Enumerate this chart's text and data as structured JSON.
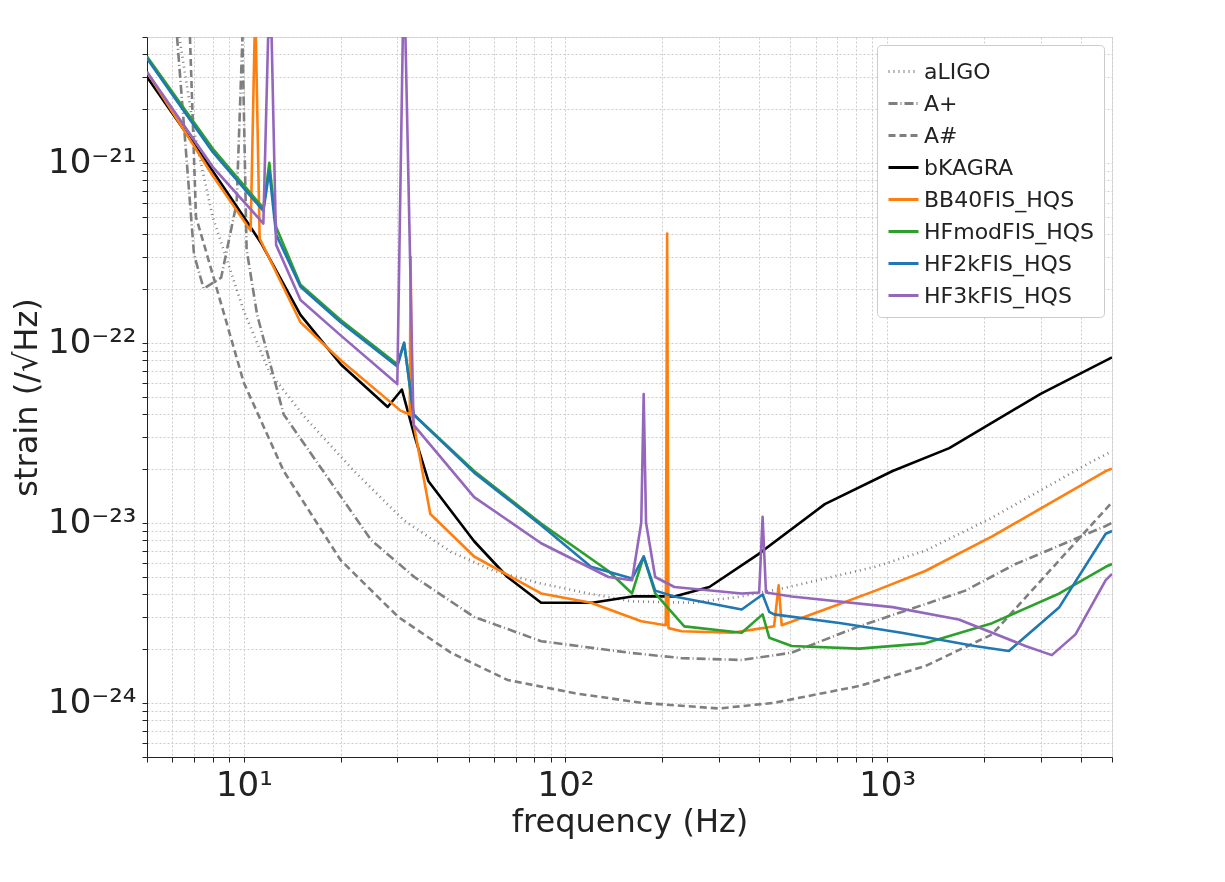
{
  "chart_data": {
    "type": "line",
    "xlabel": "frequency (Hz)",
    "ylabel": "strain (/√Hz)",
    "log": "xy",
    "grid": true,
    "legend": "top right",
    "xlim": [
      5,
      5000
    ],
    "ylim": [
      5e-25,
      5e-21
    ],
    "xticks": [
      {
        "value": 5,
        "label": null
      },
      {
        "value": 6,
        "label": null
      },
      {
        "value": 7,
        "label": null
      },
      {
        "value": 8,
        "label": null
      },
      {
        "value": 9,
        "label": null
      },
      {
        "value": 10,
        "label": "10¹"
      },
      {
        "value": 20,
        "label": null
      },
      {
        "value": 30,
        "label": null
      },
      {
        "value": 40,
        "label": null
      },
      {
        "value": 50,
        "label": null
      },
      {
        "value": 60,
        "label": null
      },
      {
        "value": 70,
        "label": null
      },
      {
        "value": 80,
        "label": null
      },
      {
        "value": 90,
        "label": null
      },
      {
        "value": 100,
        "label": "10²"
      },
      {
        "value": 200,
        "label": null
      },
      {
        "value": 300,
        "label": null
      },
      {
        "value": 400,
        "label": null
      },
      {
        "value": 500,
        "label": null
      },
      {
        "value": 600,
        "label": null
      },
      {
        "value": 700,
        "label": null
      },
      {
        "value": 800,
        "label": null
      },
      {
        "value": 900,
        "label": null
      },
      {
        "value": 1000,
        "label": "10³"
      },
      {
        "value": 2000,
        "label": null
      },
      {
        "value": 3000,
        "label": null
      },
      {
        "value": 4000,
        "label": null
      },
      {
        "value": 5000,
        "label": null
      }
    ],
    "yticks": [
      {
        "value": 5e-25,
        "label": null
      },
      {
        "value": 6e-25,
        "label": null
      },
      {
        "value": 7e-25,
        "label": null
      },
      {
        "value": 8e-25,
        "label": null
      },
      {
        "value": 9e-25,
        "label": null
      },
      {
        "value": 1e-24,
        "label": "10⁻²⁴"
      },
      {
        "value": 2e-24,
        "label": null
      },
      {
        "value": 3e-24,
        "label": null
      },
      {
        "value": 4e-24,
        "label": null
      },
      {
        "value": 5e-24,
        "label": null
      },
      {
        "value": 6e-24,
        "label": null
      },
      {
        "value": 7e-24,
        "label": null
      },
      {
        "value": 8e-24,
        "label": null
      },
      {
        "value": 9e-24,
        "label": null
      },
      {
        "value": 1e-23,
        "label": "10⁻²³"
      },
      {
        "value": 2e-23,
        "label": null
      },
      {
        "value": 3e-23,
        "label": null
      },
      {
        "value": 4e-23,
        "label": null
      },
      {
        "value": 5e-23,
        "label": null
      },
      {
        "value": 6e-23,
        "label": null
      },
      {
        "value": 7e-23,
        "label": null
      },
      {
        "value": 8e-23,
        "label": null
      },
      {
        "value": 9e-23,
        "label": null
      },
      {
        "value": 1e-22,
        "label": "10⁻²²"
      },
      {
        "value": 2e-22,
        "label": null
      },
      {
        "value": 3e-22,
        "label": null
      },
      {
        "value": 4e-22,
        "label": null
      },
      {
        "value": 5e-22,
        "label": null
      },
      {
        "value": 6e-22,
        "label": null
      },
      {
        "value": 7e-22,
        "label": null
      },
      {
        "value": 8e-22,
        "label": null
      },
      {
        "value": 9e-22,
        "label": null
      },
      {
        "value": 1e-21,
        "label": "10⁻²¹"
      },
      {
        "value": 2e-21,
        "label": null
      },
      {
        "value": 3e-21,
        "label": null
      },
      {
        "value": 4e-21,
        "label": null
      },
      {
        "value": 5e-21,
        "label": null
      }
    ],
    "series": [
      {
        "name": "aLIGO",
        "color": "#7f7f7f",
        "line_style": "dotted",
        "x": [
          6.3,
          7,
          8,
          10,
          12,
          15.4,
          22,
          31.5,
          44,
          60,
          84,
          118,
          161,
          250,
          353,
          495,
          918,
          1313,
          2080,
          4350,
          5000
        ],
        "values": [
          5e-21,
          1.5e-21,
          5e-22,
          1.5e-22,
          6.9e-23,
          3.9e-23,
          1.94e-23,
          1.03e-23,
          6.9e-24,
          5.4e-24,
          4.6e-24,
          4.05e-24,
          3.66e-24,
          3.6e-24,
          3.9e-24,
          4.4e-24,
          5.7e-24,
          7e-24,
          1.05e-23,
          2.2e-23,
          2.5e-23
        ]
      },
      {
        "name": "A+",
        "color": "#7f7f7f",
        "line_style": "dashdot",
        "x": [
          6.2,
          7,
          7.5,
          8.5,
          9.5,
          9.9,
          10.2,
          11,
          13.3,
          24.9,
          33.9,
          52,
          84,
          157,
          230,
          353,
          505,
          818,
          1750,
          2506,
          4780,
          5000
        ],
        "values": [
          5e-21,
          3.1e-22,
          2e-22,
          2.3e-22,
          6e-22,
          5e-21,
          3.3e-22,
          1.43e-22,
          4e-23,
          8e-24,
          5e-24,
          3e-24,
          2.2e-24,
          1.9e-24,
          1.77e-24,
          1.73e-24,
          1.9e-24,
          2.66e-24,
          4.2e-24,
          5.9e-24,
          9.6e-24,
          1e-23
        ]
      },
      {
        "name": "A#",
        "color": "#7f7f7f",
        "line_style": "dashed",
        "x": [
          6.8,
          7.1,
          7.6,
          10,
          13.3,
          20,
          30.2,
          44,
          66,
          107,
          172,
          300,
          445,
          818,
          1313,
          2120,
          3430,
          5000
        ],
        "values": [
          5e-21,
          5e-22,
          3.3e-22,
          6e-23,
          1.94e-23,
          6.2e-24,
          3e-24,
          1.9e-24,
          1.34e-24,
          1.13e-24,
          1e-24,
          9.3e-25,
          1e-24,
          1.24e-24,
          1.6e-24,
          2.4e-24,
          6.2e-24,
          1.3e-23
        ]
      },
      {
        "name": "bKAGRA",
        "color": "#000000",
        "line_style": "solid",
        "x": [
          5,
          8,
          10,
          11.3,
          15,
          20,
          28,
          31,
          34,
          37.5,
          52,
          66,
          84,
          121,
          161,
          218,
          280,
          398,
          640,
          1040,
          1560,
          3000,
          5000
        ],
        "values": [
          3e-21,
          9e-22,
          5e-22,
          3.6e-22,
          1.43e-22,
          7.6e-23,
          4.4e-23,
          5.5e-23,
          3e-23,
          1.7e-23,
          7.9e-24,
          5e-24,
          3.6e-24,
          3.6e-24,
          3.9e-24,
          3.9e-24,
          4.4e-24,
          6.7e-24,
          1.27e-23,
          1.94e-23,
          2.6e-23,
          5.2e-23,
          8.3e-23
        ]
      },
      {
        "name": "BB40FIS_HQS",
        "color": "#ff7f0e",
        "line_style": "solid",
        "x": [
          5,
          8,
          10.5,
          10.8,
          10.9,
          11.2,
          15,
          20,
          30.7,
          32.8,
          33,
          33.3,
          38,
          52,
          84,
          120,
          172,
          205,
          207,
          209,
          230,
          330,
          445,
          460,
          470,
          640,
          920,
          1313,
          2120,
          4780,
          5000
        ],
        "values": [
          3.2e-21,
          8.5e-22,
          4.2e-22,
          5e-21,
          5e-21,
          3.8e-22,
          1.3e-22,
          8e-23,
          4.2e-23,
          4e-23,
          3e-22,
          4e-23,
          1.12e-23,
          6.5e-24,
          4.05e-24,
          3.6e-24,
          2.84e-24,
          2.7e-24,
          4.05e-22,
          2.6e-24,
          2.5e-24,
          2.45e-24,
          2.66e-24,
          4.5e-24,
          2.7e-24,
          3.3e-24,
          4.2e-24,
          5.4e-24,
          8.4e-24,
          1.94e-23,
          2e-23
        ]
      },
      {
        "name": "HFmodFIS_HQS",
        "color": "#2ca02c",
        "line_style": "solid",
        "x": [
          5,
          8,
          11.5,
          12,
          12.6,
          15,
          20,
          30,
          31.5,
          33.7,
          52,
          84,
          136,
          161,
          175,
          190,
          234,
          353,
          410,
          430,
          505,
          818,
          1313,
          2120,
          3430,
          4780,
          5000
        ],
        "values": [
          3.9e-21,
          1.2e-21,
          5.6e-22,
          1e-21,
          4.4e-22,
          2.1e-22,
          1.34e-22,
          7.6e-23,
          1e-22,
          4e-23,
          1.94e-23,
          9.9e-24,
          5.4e-24,
          4.05e-24,
          6.5e-24,
          4.05e-24,
          2.66e-24,
          2.45e-24,
          3.1e-24,
          2.3e-24,
          2.07e-24,
          2e-24,
          2.14e-24,
          2.77e-24,
          4.05e-24,
          5.7e-24,
          5.9e-24
        ]
      },
      {
        "name": "HF2kFIS_HQS",
        "color": "#1f77b4",
        "line_style": "solid",
        "x": [
          5,
          8,
          11.5,
          12,
          12.6,
          15,
          20,
          30,
          31.5,
          33.7,
          52,
          84,
          120,
          161,
          175,
          190,
          218,
          353,
          410,
          430,
          445,
          720,
          1120,
          1870,
          2390,
          3430,
          4780,
          5000
        ],
        "values": [
          3.8e-21,
          1.15e-21,
          5.4e-22,
          9e-22,
          4e-22,
          2.05e-22,
          1.3e-22,
          7.4e-23,
          1e-22,
          4e-23,
          1.9e-23,
          9.7e-24,
          5.7e-24,
          4.9e-24,
          6.5e-24,
          4.2e-24,
          3.9e-24,
          3.3e-24,
          4e-24,
          3.2e-24,
          3.1e-24,
          2.77e-24,
          2.44e-24,
          2.07e-24,
          1.94e-24,
          3.4e-24,
          8.7e-24,
          9e-24
        ]
      },
      {
        "name": "HF3kFIS_HQS",
        "color": "#9467bd",
        "line_style": "solid",
        "x": [
          5,
          8,
          11.5,
          11.9,
          12,
          12.2,
          12.6,
          15,
          20,
          30,
          31.2,
          31.5,
          31.8,
          33.7,
          52,
          84,
          136,
          161,
          172,
          175,
          178,
          190,
          218,
          353,
          400,
          410,
          420,
          505,
          1040,
          1670,
          2690,
          3250,
          3850,
          4780,
          5000
        ],
        "values": [
          3.2e-21,
          9.5e-22,
          4.6e-22,
          5e-21,
          5e-21,
          5e-21,
          3.5e-22,
          1.73e-22,
          1.1e-22,
          5.9e-23,
          5e-21,
          5e-21,
          5e-21,
          3.5e-23,
          1.39e-23,
          7.7e-24,
          5e-24,
          4.8e-24,
          1e-23,
          5.2e-23,
          1e-23,
          5e-24,
          4.4e-24,
          4.05e-24,
          4.1e-24,
          1.08e-23,
          4.1e-24,
          3.9e-24,
          3.4e-24,
          2.9e-24,
          2.07e-24,
          1.84e-24,
          2.4e-24,
          4.8e-24,
          5.2e-24
        ]
      }
    ]
  }
}
